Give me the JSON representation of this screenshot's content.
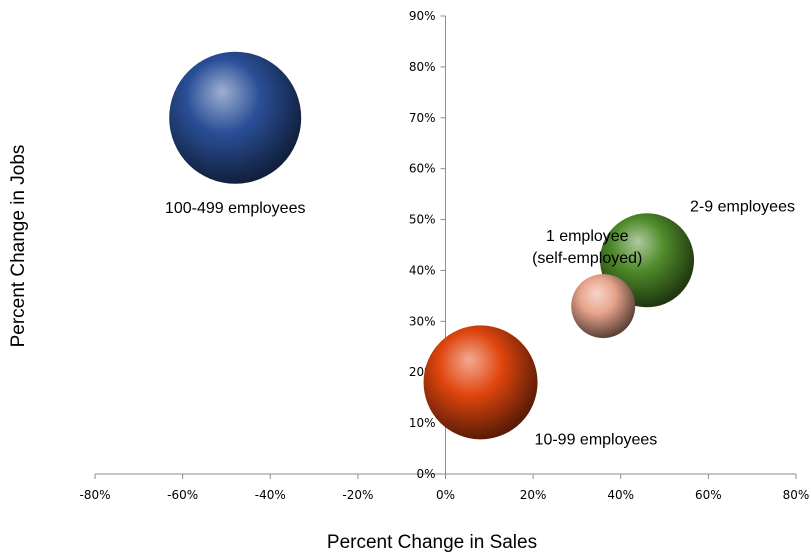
{
  "chart_data": {
    "type": "bubble",
    "title": "",
    "xlabel": "Percent Change in Sales",
    "ylabel": "Percent Change in Jobs",
    "xlim": [
      -80,
      80
    ],
    "ylim": [
      0,
      90
    ],
    "x_ticks": [
      "-80%",
      "-60%",
      "-40%",
      "-20%",
      "0%",
      "20%",
      "40%",
      "60%",
      "80%"
    ],
    "y_ticks": [
      "0%",
      "10%",
      "20%",
      "30%",
      "40%",
      "50%",
      "60%",
      "70%",
      "80%",
      "90%"
    ],
    "grid": false,
    "legend": "none",
    "series": [
      {
        "label": "100-499 employees",
        "x": -48,
        "y": 70,
        "size": 66,
        "color": "#2a4f98"
      },
      {
        "label": "2-9 employees",
        "x": 46,
        "y": 42,
        "size": 47,
        "color": "#4f8a2a"
      },
      {
        "label": "1 employee (self-employed)",
        "label_lines": [
          "1 employee",
          "(self-employed)"
        ],
        "x": 36,
        "y": 33,
        "size": 32,
        "color": "#e8a48c"
      },
      {
        "label": "10-99 employees",
        "x": 8,
        "y": 18,
        "size": 57,
        "color": "#e0450e"
      }
    ]
  }
}
